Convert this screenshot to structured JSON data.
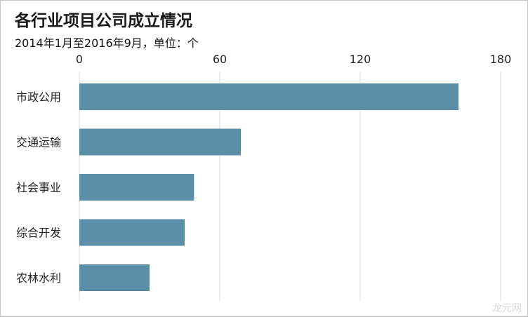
{
  "title": "各行业项目公司成立情况",
  "subtitle": "2014年1月至2016年9月，单位：个",
  "watermark": "龙元网",
  "colors": {
    "bar": "#5b8fa8",
    "grid": "#d9d9d9"
  },
  "chart_data": {
    "type": "bar",
    "orientation": "horizontal",
    "title": "各行业项目公司成立情况",
    "subtitle": "2014年1月至2016年9月，单位：个",
    "categories": [
      "市政公用",
      "交通运输",
      "社会事业",
      "综合开发",
      "农林水利"
    ],
    "values": [
      162,
      69,
      49,
      45,
      30
    ],
    "xlim": [
      0,
      180
    ],
    "xticks": [
      0,
      60,
      120,
      180
    ],
    "xaxis_position": "top",
    "grid": true
  }
}
